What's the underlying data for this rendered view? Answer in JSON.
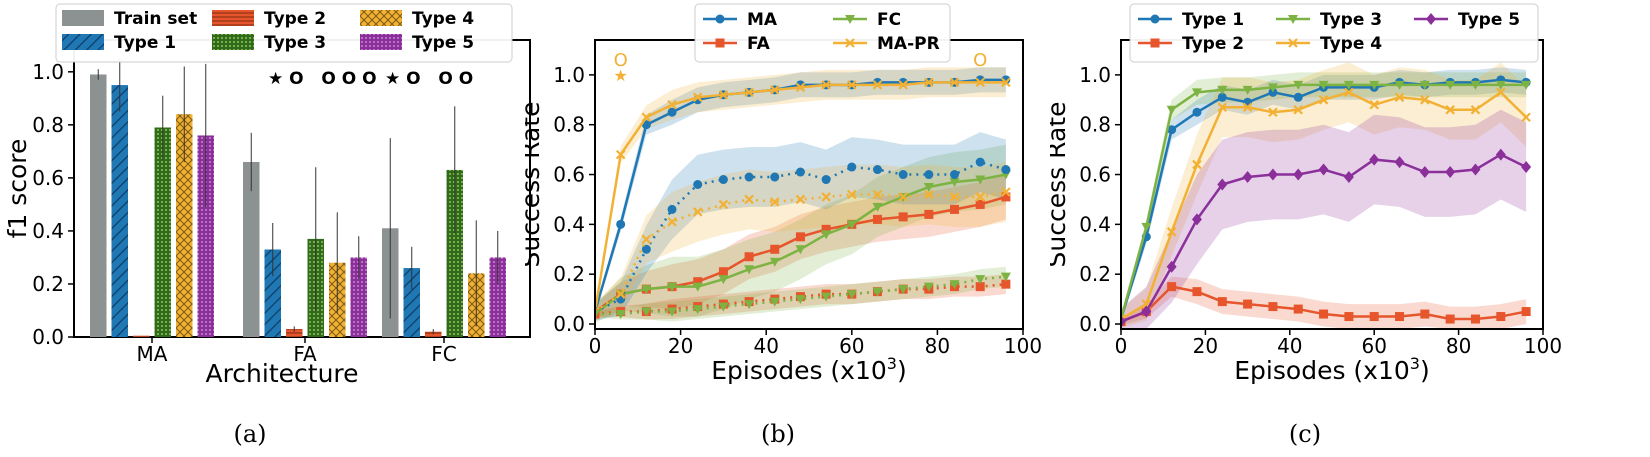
{
  "colors": {
    "blue": "#1f77b4",
    "orange": "#e6552b",
    "green": "#7cb342",
    "yellow": "#f2b134",
    "gray": "#8c9292",
    "darkgreen": "#2e6b1a",
    "purple": "#8b2f9a"
  },
  "chart_data": [
    {
      "id": "a",
      "type": "bar",
      "caption": "(a)",
      "xlabel": "Architecture",
      "ylabel": "f1 score",
      "ylim": [
        0,
        1.0
      ],
      "yticks": [
        "0.0",
        "0.2",
        "0.4",
        "0.6",
        "0.8",
        "1.0"
      ],
      "categories": [
        "MA",
        "FA",
        "FC"
      ],
      "legend_position": "top",
      "series": [
        {
          "name": "Train set",
          "color": "#8c9292",
          "pattern": "none",
          "values": [
            0.99,
            0.66,
            0.41
          ],
          "err": [
            0.02,
            0.11,
            0.34
          ]
        },
        {
          "name": "Type 1",
          "color": "#1f77b4",
          "pattern": "diag",
          "values": [
            0.95,
            0.33,
            0.26
          ],
          "err": [
            0.1,
            0.1,
            0.08
          ]
        },
        {
          "name": "Type 2",
          "color": "#e6552b",
          "pattern": "horiz",
          "values": [
            0.005,
            0.03,
            0.02
          ],
          "err": [
            0.0,
            0.01,
            0.01
          ]
        },
        {
          "name": "Type 3",
          "color": "#2e6b1a",
          "pattern": "dots",
          "values": [
            0.79,
            0.37,
            0.63
          ],
          "err": [
            0.12,
            0.27,
            0.24
          ]
        },
        {
          "name": "Type 4",
          "color": "#f2b134",
          "pattern": "cross",
          "values": [
            0.84,
            0.28,
            0.24
          ],
          "err": [
            0.18,
            0.19,
            0.2
          ]
        },
        {
          "name": "Type 5",
          "color": "#8b2f9a",
          "pattern": "dots",
          "values": [
            0.76,
            0.3,
            0.3
          ],
          "err": [
            0.27,
            0.08,
            0.1
          ]
        }
      ],
      "annotations": [
        {
          "category": "MA",
          "text": ""
        },
        {
          "category": "FA",
          "text": "★ O   O O O"
        },
        {
          "category": "FC",
          "text": "★ O   O O"
        }
      ]
    },
    {
      "id": "b",
      "type": "line",
      "caption": "(b)",
      "xlabel": "Episodes (x10",
      "xlabel_sup": "3",
      "xlabel_close": ")",
      "ylabel": "Success Rate",
      "xlim": [
        0,
        100
      ],
      "ylim": [
        -0.02,
        1.14
      ],
      "xticks": [
        "0",
        "20",
        "40",
        "60",
        "80",
        "100"
      ],
      "yticks": [
        "0.0",
        "0.2",
        "0.4",
        "0.6",
        "0.8",
        "1.0"
      ],
      "x": [
        0,
        6,
        12,
        18,
        24,
        30,
        36,
        42,
        48,
        54,
        60,
        66,
        72,
        78,
        84,
        90,
        96
      ],
      "legend_position": "top",
      "series": [
        {
          "name": "MA",
          "color": "#1f77b4",
          "marker": "circle",
          "style": "solid",
          "values": [
            0.05,
            0.4,
            0.8,
            0.85,
            0.9,
            0.92,
            0.93,
            0.94,
            0.96,
            0.96,
            0.96,
            0.97,
            0.97,
            0.97,
            0.97,
            0.98,
            0.98
          ],
          "band": 0.05
        },
        {
          "name": "FA",
          "color": "#e6552b",
          "marker": "square",
          "style": "solid",
          "values": [
            0.05,
            0.12,
            0.14,
            0.15,
            0.17,
            0.21,
            0.27,
            0.3,
            0.35,
            0.38,
            0.4,
            0.42,
            0.43,
            0.44,
            0.46,
            0.48,
            0.51
          ],
          "band": 0.09
        },
        {
          "name": "FC",
          "color": "#7cb342",
          "marker": "triangle",
          "style": "solid",
          "values": [
            0.04,
            0.12,
            0.14,
            0.15,
            0.15,
            0.18,
            0.22,
            0.25,
            0.3,
            0.36,
            0.4,
            0.47,
            0.51,
            0.55,
            0.57,
            0.58,
            0.6
          ],
          "band": 0.12
        },
        {
          "name": "MA-PR",
          "color": "#f2b134",
          "marker": "x",
          "style": "solid",
          "values": [
            0.05,
            0.68,
            0.83,
            0.88,
            0.91,
            0.92,
            0.93,
            0.94,
            0.95,
            0.96,
            0.96,
            0.96,
            0.96,
            0.97,
            0.97,
            0.97,
            0.97
          ],
          "band": 0.06
        },
        {
          "name": "MA (dotted)",
          "legend": false,
          "color": "#1f77b4",
          "marker": "circle",
          "style": "dotted",
          "values": [
            0.05,
            0.1,
            0.3,
            0.46,
            0.56,
            0.58,
            0.59,
            0.59,
            0.61,
            0.58,
            0.63,
            0.62,
            0.6,
            0.6,
            0.6,
            0.65,
            0.62
          ],
          "band": 0.12
        },
        {
          "name": "MA-PR (dotted)",
          "legend": false,
          "color": "#f2b134",
          "marker": "x",
          "style": "dotted",
          "values": [
            0.05,
            0.12,
            0.34,
            0.41,
            0.45,
            0.48,
            0.5,
            0.49,
            0.5,
            0.51,
            0.52,
            0.52,
            0.51,
            0.52,
            0.51,
            0.51,
            0.53
          ],
          "band": 0.12
        },
        {
          "name": "FA (dotted)",
          "legend": false,
          "color": "#e6552b",
          "marker": "square",
          "style": "dotted",
          "values": [
            0.04,
            0.05,
            0.05,
            0.06,
            0.07,
            0.08,
            0.09,
            0.1,
            0.11,
            0.12,
            0.12,
            0.13,
            0.14,
            0.14,
            0.15,
            0.15,
            0.16
          ],
          "band": 0.04
        },
        {
          "name": "FC (dotted)",
          "legend": false,
          "color": "#7cb342",
          "marker": "triangle",
          "style": "dotted",
          "values": [
            0.04,
            0.04,
            0.05,
            0.05,
            0.06,
            0.07,
            0.08,
            0.09,
            0.1,
            0.11,
            0.12,
            0.13,
            0.14,
            0.15,
            0.16,
            0.18,
            0.19
          ],
          "band": 0.04
        }
      ],
      "annotations": [
        {
          "x": 6,
          "y": 1.06,
          "text": "O",
          "color": "#f2b134"
        },
        {
          "x": 6,
          "y": 1.0,
          "text": "★",
          "color": "#f2b134"
        },
        {
          "x": 90,
          "y": 1.06,
          "text": "O",
          "color": "#f2b134"
        }
      ]
    },
    {
      "id": "c",
      "type": "line",
      "caption": "(c)",
      "xlabel": "Episodes (x10",
      "xlabel_sup": "3",
      "xlabel_close": ")",
      "ylabel": "Success Rate",
      "xlim": [
        0,
        100
      ],
      "ylim": [
        -0.02,
        1.14
      ],
      "xticks": [
        "0",
        "20",
        "40",
        "60",
        "80",
        "100"
      ],
      "yticks": [
        "0.0",
        "0.2",
        "0.4",
        "0.6",
        "0.8",
        "1.0"
      ],
      "x": [
        0,
        6,
        12,
        18,
        24,
        30,
        36,
        42,
        48,
        54,
        60,
        66,
        72,
        78,
        84,
        90,
        96
      ],
      "legend_position": "top",
      "series": [
        {
          "name": "Type 1",
          "color": "#1f77b4",
          "marker": "circle",
          "style": "solid",
          "values": [
            0.02,
            0.35,
            0.78,
            0.85,
            0.91,
            0.89,
            0.93,
            0.91,
            0.95,
            0.95,
            0.95,
            0.97,
            0.96,
            0.97,
            0.97,
            0.98,
            0.97
          ],
          "band": 0.05
        },
        {
          "name": "Type 2",
          "color": "#e6552b",
          "marker": "square",
          "style": "solid",
          "values": [
            0.01,
            0.05,
            0.15,
            0.13,
            0.09,
            0.08,
            0.07,
            0.06,
            0.04,
            0.03,
            0.03,
            0.03,
            0.04,
            0.02,
            0.02,
            0.03,
            0.05
          ],
          "band": 0.05
        },
        {
          "name": "Type 3",
          "color": "#7cb342",
          "marker": "triangle",
          "style": "solid",
          "values": [
            0.02,
            0.39,
            0.86,
            0.93,
            0.94,
            0.94,
            0.95,
            0.96,
            0.96,
            0.96,
            0.96,
            0.96,
            0.96,
            0.96,
            0.96,
            0.96,
            0.96
          ],
          "band": 0.05
        },
        {
          "name": "Type 4",
          "color": "#f2b134",
          "marker": "x",
          "style": "solid",
          "values": [
            0.02,
            0.08,
            0.37,
            0.64,
            0.87,
            0.87,
            0.85,
            0.86,
            0.9,
            0.93,
            0.88,
            0.91,
            0.9,
            0.86,
            0.86,
            0.93,
            0.83
          ],
          "band": 0.12
        },
        {
          "name": "Type 5",
          "color": "#8b2f9a",
          "marker": "diamond",
          "style": "solid",
          "values": [
            0.01,
            0.05,
            0.23,
            0.42,
            0.56,
            0.59,
            0.6,
            0.6,
            0.62,
            0.59,
            0.66,
            0.65,
            0.61,
            0.61,
            0.62,
            0.68,
            0.63
          ],
          "band": 0.18
        }
      ]
    }
  ]
}
